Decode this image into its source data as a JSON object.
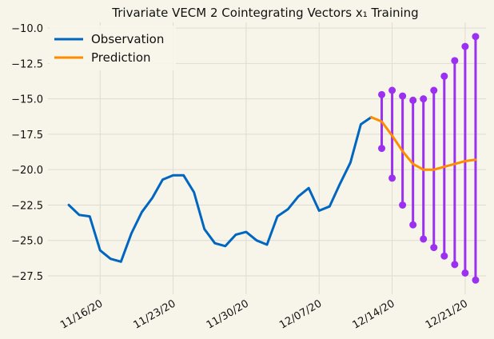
{
  "chart_data": {
    "type": "line",
    "title": "Trivariate VECM 2 Cointegrating Vectors x₁ Training",
    "xlabel": "",
    "ylabel": "",
    "ylim": [
      -28.8,
      -9.6
    ],
    "yticks": [
      -10.0,
      -12.5,
      -15.0,
      -17.5,
      -20.0,
      -22.5,
      -25.0,
      -27.5
    ],
    "ytick_labels": [
      "−10.0",
      "−12.5",
      "−15.0",
      "−17.5",
      "−20.0",
      "−22.5",
      "−25.0",
      "−27.5"
    ],
    "xlim": [
      "2020-11-11",
      "2020-12-23"
    ],
    "xticks": [
      "2020-11-16",
      "2020-11-23",
      "2020-11-30",
      "2020-12-07",
      "2020-12-14",
      "2020-12-21"
    ],
    "xtick_labels": [
      "11/16/20",
      "11/23/20",
      "11/30/20",
      "12/07/20",
      "12/14/20",
      "12/21/20"
    ],
    "grid": true,
    "legend_placement": "top-left",
    "colors": {
      "observation": "#0066c0",
      "prediction": "#ff8c00",
      "interval": "#9b30f0"
    },
    "series": [
      {
        "name": "Observation",
        "x": [
          "2020-11-13",
          "2020-11-14",
          "2020-11-15",
          "2020-11-16",
          "2020-11-17",
          "2020-11-18",
          "2020-11-19",
          "2020-11-20",
          "2020-11-21",
          "2020-11-22",
          "2020-11-23",
          "2020-11-24",
          "2020-11-25",
          "2020-11-26",
          "2020-11-27",
          "2020-11-28",
          "2020-11-29",
          "2020-11-30",
          "2020-12-01",
          "2020-12-02",
          "2020-12-03",
          "2020-12-04",
          "2020-12-05",
          "2020-12-06",
          "2020-12-07",
          "2020-12-08",
          "2020-12-09",
          "2020-12-10",
          "2020-12-11",
          "2020-12-12"
        ],
        "y": [
          -22.5,
          -23.2,
          -23.3,
          -25.7,
          -26.3,
          -26.5,
          -24.5,
          -23.0,
          -22.0,
          -20.7,
          -20.4,
          -20.4,
          -21.6,
          -24.2,
          -25.2,
          -25.4,
          -24.6,
          -24.4,
          -25.0,
          -25.3,
          -23.3,
          -22.8,
          -21.9,
          -21.3,
          -22.9,
          -22.6,
          -21.0,
          -19.5,
          -16.8,
          -16.3
        ]
      },
      {
        "name": "Prediction",
        "x": [
          "2020-12-12",
          "2020-12-13",
          "2020-12-14",
          "2020-12-15",
          "2020-12-16",
          "2020-12-17",
          "2020-12-18",
          "2020-12-19",
          "2020-12-20",
          "2020-12-21",
          "2020-12-22"
        ],
        "y": [
          -16.3,
          -16.6,
          -17.6,
          -18.7,
          -19.6,
          -20.0,
          -20.0,
          -19.8,
          -19.6,
          -19.4,
          -19.3
        ]
      }
    ],
    "intervals": {
      "x": [
        "2020-12-13",
        "2020-12-14",
        "2020-12-15",
        "2020-12-16",
        "2020-12-17",
        "2020-12-18",
        "2020-12-19",
        "2020-12-20",
        "2020-12-21",
        "2020-12-22"
      ],
      "lower": [
        -18.5,
        -20.6,
        -22.5,
        -23.9,
        -24.9,
        -25.5,
        -26.1,
        -26.7,
        -27.3,
        -27.8
      ],
      "upper": [
        -14.7,
        -14.4,
        -14.8,
        -15.1,
        -15.0,
        -14.4,
        -13.4,
        -12.3,
        -11.3,
        -10.6
      ]
    }
  }
}
